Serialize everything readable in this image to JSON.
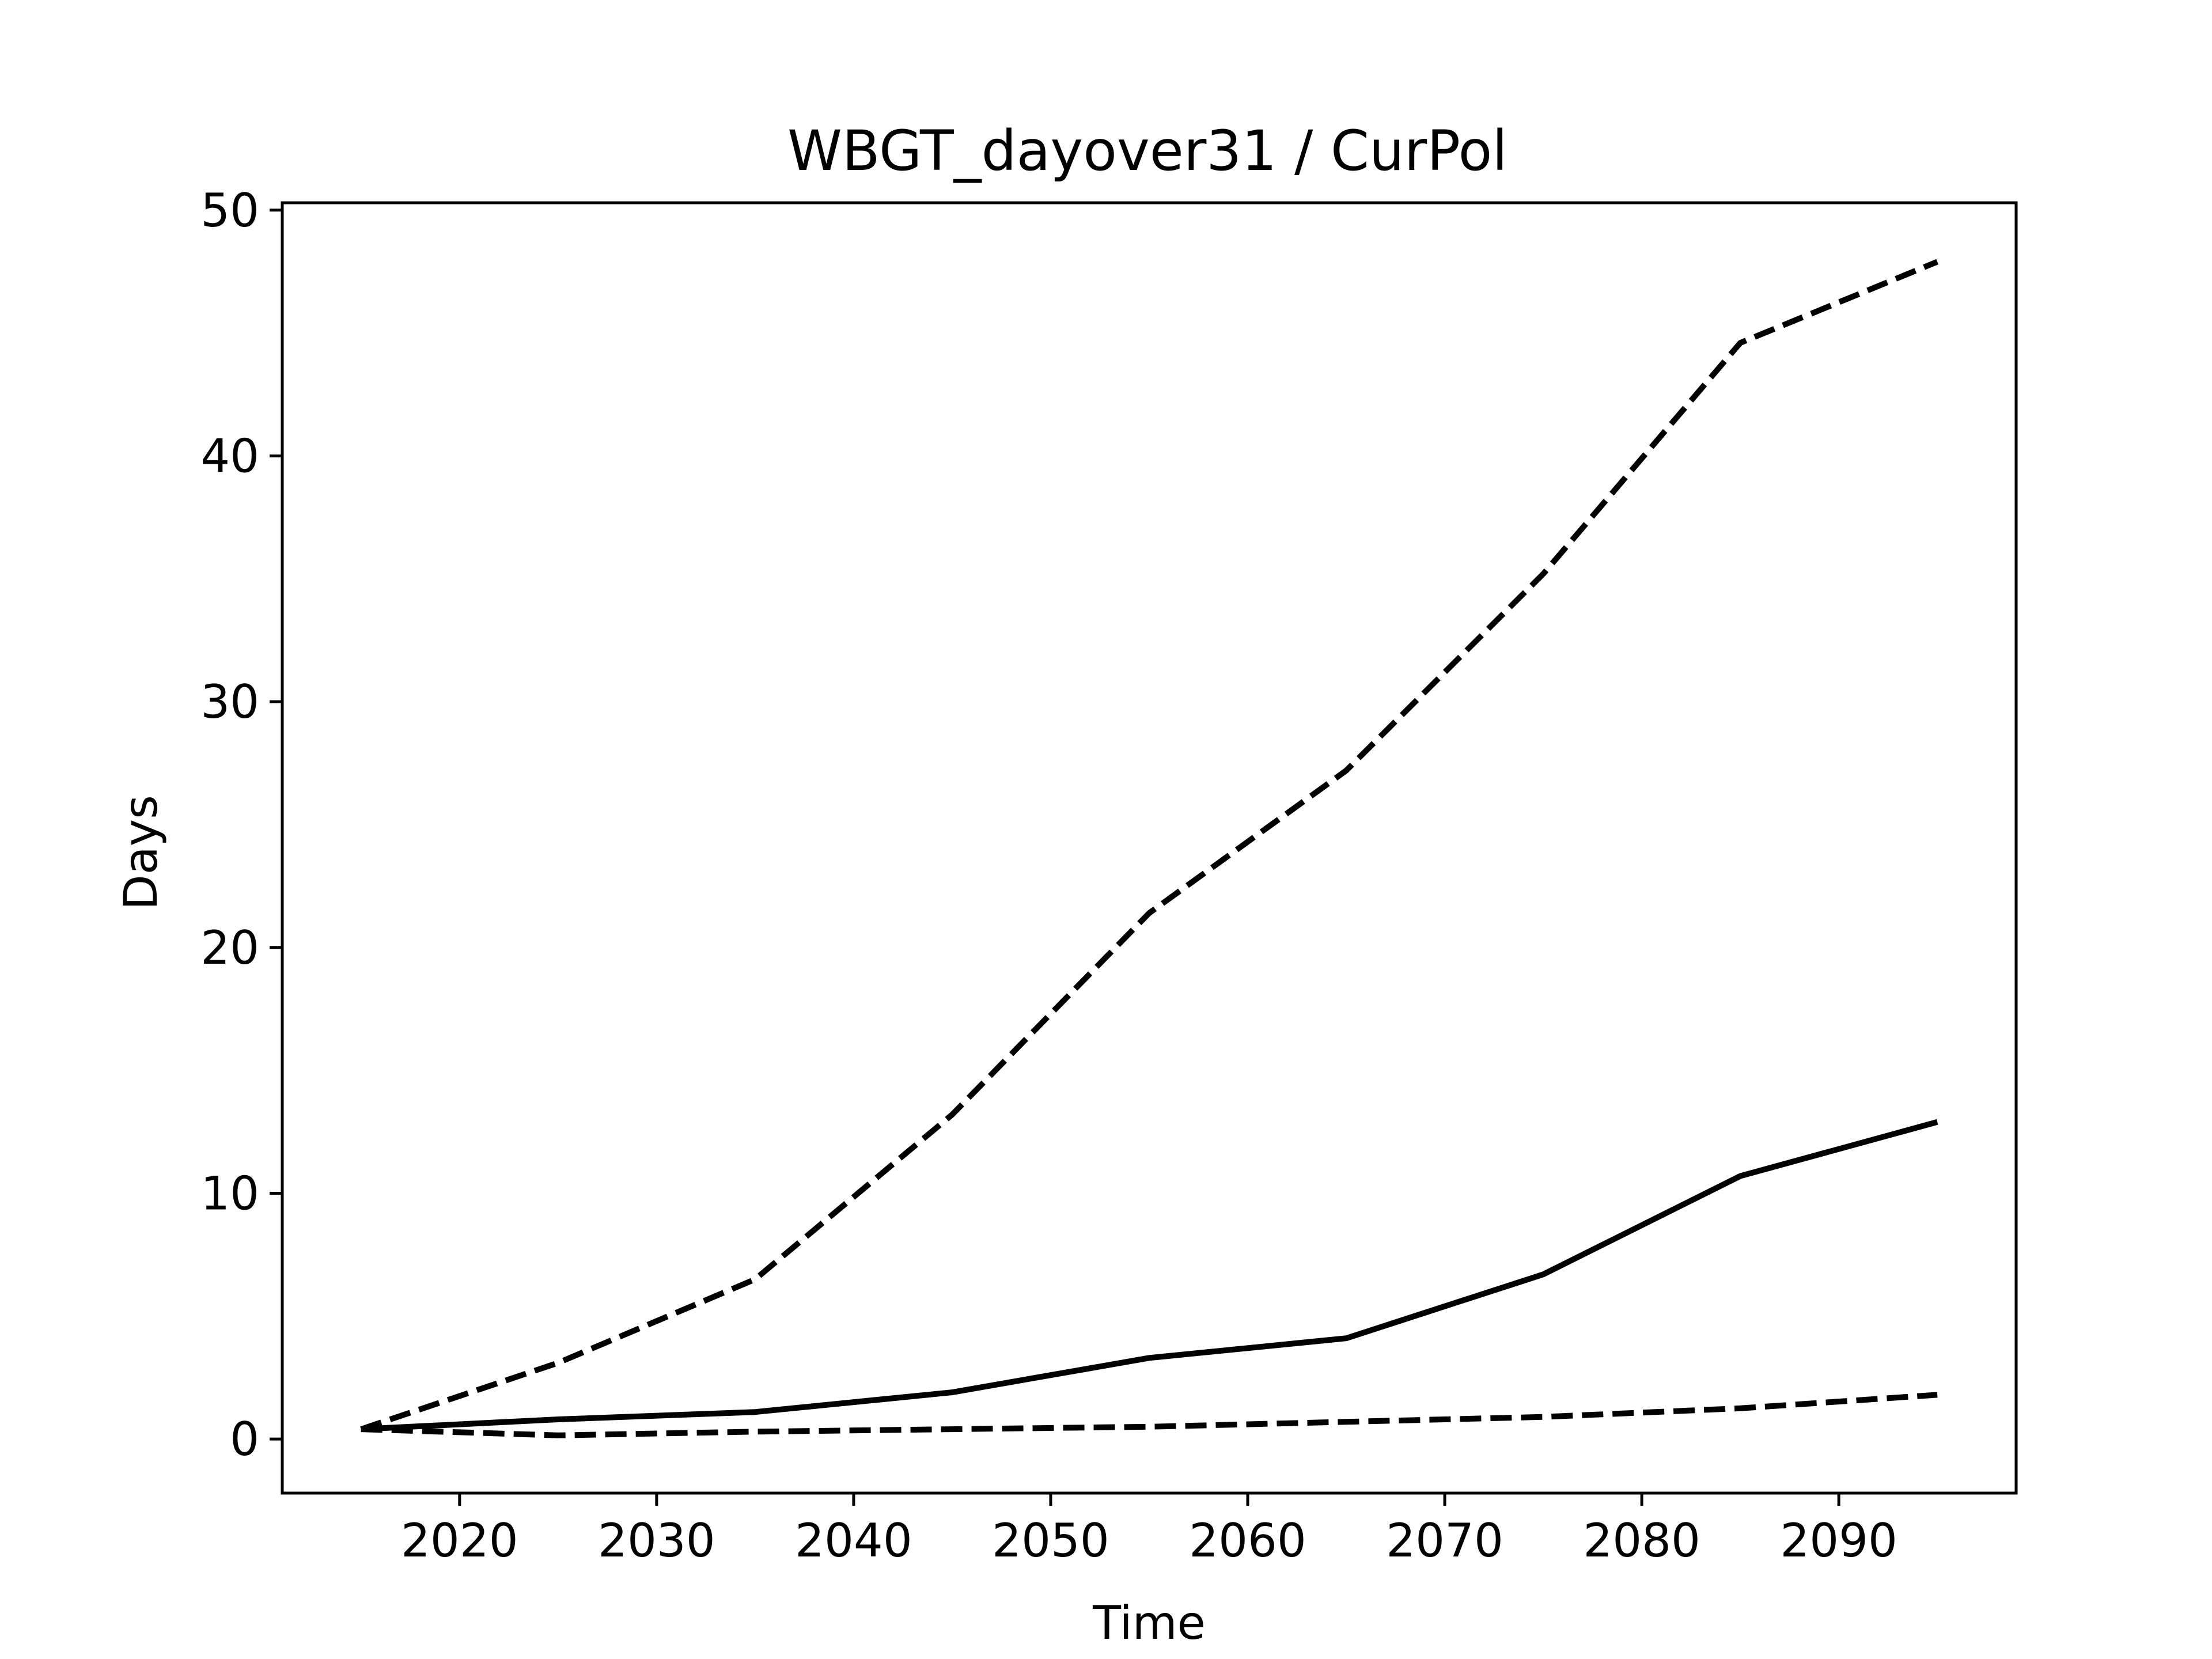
{
  "chart_data": {
    "type": "line",
    "title": "WBGT_dayover31 / CurPol",
    "xlabel": "Time",
    "ylabel": "Days",
    "xlim": [
      2011,
      2099
    ],
    "ylim": [
      -2.2,
      50.3
    ],
    "xticks": [
      2020,
      2030,
      2040,
      2050,
      2060,
      2070,
      2080,
      2090
    ],
    "yticks": [
      0,
      10,
      20,
      30,
      40,
      50
    ],
    "grid": false,
    "legend": "none",
    "x": [
      2015,
      2025,
      2035,
      2045,
      2055,
      2065,
      2075,
      2085,
      2095
    ],
    "series": [
      {
        "values": [
          0.4,
          0.8,
          1.1,
          1.9,
          3.3,
          4.1,
          6.7,
          10.7,
          12.9
        ],
        "color": "#000000",
        "style": "solid"
      },
      {
        "values": [
          0.4,
          3.1,
          6.5,
          13.2,
          21.4,
          27.2,
          35.2,
          44.6,
          47.9
        ],
        "color": "#000000",
        "style": "dashed"
      },
      {
        "values": [
          0.4,
          0.15,
          0.3,
          0.4,
          0.5,
          0.7,
          0.9,
          1.25,
          1.8
        ],
        "color": "#000000",
        "style": "dashed"
      }
    ]
  }
}
